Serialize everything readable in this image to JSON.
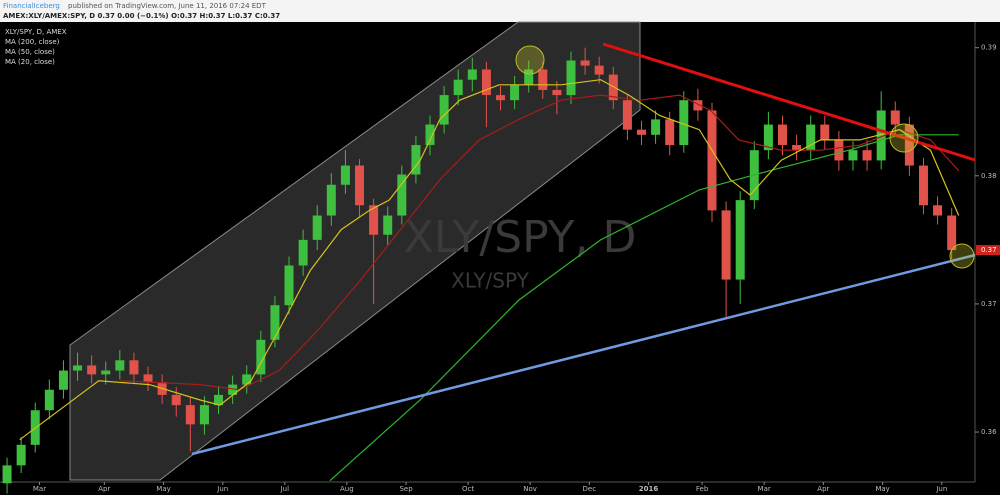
{
  "header": {
    "publisher": "FinancialIceberg",
    "published": "published on TradingView.com, June 11, 2016 07:24 EDT",
    "quote": "AMEX:XLY/AMEX:SPY, D 0.37 0.00 (−0.1%) O:0.37 H:0.37 L:0.37 C:0.37"
  },
  "chart_data": {
    "type": "candlestick",
    "legend": [
      "XLY/SPY, D, AMEX"
    ],
    "watermark": "XLY/SPY, D",
    "watermark_sub": "XLY/SPY",
    "last_price_label": "0.37",
    "up_color": "#3fbf3f",
    "down_color": "#e0524a",
    "x": [
      2.5,
      7.5,
      12.5,
      17.5,
      22.5,
      27.5,
      32.5,
      37.5,
      42.5,
      47.5,
      52.5,
      57.5,
      62.5,
      67.5,
      72.5,
      77.5,
      82.5,
      87.5,
      92.5,
      97.5,
      102.5,
      107.5,
      112.5,
      117.5,
      122.5,
      127.5,
      132.5,
      137.5,
      142.5,
      147.5,
      152.5,
      157.5,
      162.5,
      167.5,
      172.5,
      177.5,
      182.5,
      187.5,
      192.5,
      197.5,
      202.5,
      207.5,
      212.5,
      217.5,
      222.5,
      227.5,
      232.5,
      237.5,
      242.5,
      247.5,
      252.5,
      257.5,
      262.5,
      267.5,
      272.5,
      277.5,
      282.5,
      287.5,
      292.5,
      297.5,
      302.5,
      307.5,
      312.5,
      317.5,
      322.5,
      327.5,
      332.5,
      337.5
    ],
    "open": [
      0.356,
      0.3574,
      0.359,
      0.3617,
      0.3633,
      0.3648,
      0.3652,
      0.3645,
      0.3648,
      0.3656,
      0.3645,
      0.3639,
      0.3629,
      0.3621,
      0.3606,
      0.3621,
      0.3629,
      0.3637,
      0.3645,
      0.3672,
      0.3699,
      0.373,
      0.375,
      0.3769,
      0.3793,
      0.3808,
      0.3777,
      0.3754,
      0.3769,
      0.3801,
      0.3824,
      0.384,
      0.3863,
      0.3875,
      0.3883,
      0.3863,
      0.3859,
      0.3871,
      0.3883,
      0.3867,
      0.3863,
      0.389,
      0.3886,
      0.3879,
      0.3859,
      0.3836,
      0.3832,
      0.3844,
      0.3824,
      0.3859,
      0.3851,
      0.3773,
      0.3719,
      0.3781,
      0.382,
      0.384,
      0.3824,
      0.382,
      0.384,
      0.3828,
      0.3812,
      0.382,
      0.3812,
      0.3851,
      0.384,
      0.3808,
      0.3777,
      0.3769
    ],
    "high": [
      0.358,
      0.3596,
      0.3623,
      0.3641,
      0.3656,
      0.3662,
      0.366,
      0.3655,
      0.3664,
      0.3662,
      0.3651,
      0.3645,
      0.3635,
      0.3627,
      0.3628,
      0.3636,
      0.3644,
      0.3652,
      0.3679,
      0.3706,
      0.3737,
      0.3758,
      0.3777,
      0.3802,
      0.382,
      0.3813,
      0.3782,
      0.3776,
      0.3808,
      0.3831,
      0.3847,
      0.387,
      0.3883,
      0.3892,
      0.3889,
      0.387,
      0.3878,
      0.389,
      0.3889,
      0.3874,
      0.3897,
      0.39,
      0.3893,
      0.3885,
      0.3864,
      0.3843,
      0.3851,
      0.385,
      0.3866,
      0.3868,
      0.3857,
      0.378,
      0.3788,
      0.3827,
      0.385,
      0.3847,
      0.3832,
      0.3847,
      0.3847,
      0.3835,
      0.3827,
      0.3828,
      0.3866,
      0.3858,
      0.3846,
      0.3814,
      0.3784,
      0.3775
    ],
    "low": [
      0.3552,
      0.3568,
      0.3584,
      0.361,
      0.3626,
      0.364,
      0.3638,
      0.3637,
      0.3641,
      0.3638,
      0.3632,
      0.3622,
      0.3612,
      0.3585,
      0.3598,
      0.3614,
      0.3622,
      0.363,
      0.3639,
      0.3666,
      0.3692,
      0.3722,
      0.3742,
      0.3761,
      0.3786,
      0.3768,
      0.37,
      0.3746,
      0.3762,
      0.3794,
      0.3816,
      0.3833,
      0.3855,
      0.3866,
      0.3838,
      0.3851,
      0.3852,
      0.3865,
      0.386,
      0.3848,
      0.3856,
      0.3879,
      0.3872,
      0.3852,
      0.3828,
      0.3824,
      0.3825,
      0.3816,
      0.3818,
      0.3843,
      0.3764,
      0.3688,
      0.37,
      0.3774,
      0.3813,
      0.3816,
      0.3812,
      0.3813,
      0.382,
      0.3804,
      0.3804,
      0.3804,
      0.3805,
      0.3832,
      0.38,
      0.377,
      0.3762,
      0.3735
    ],
    "close": [
      0.3574,
      0.359,
      0.3617,
      0.3633,
      0.3648,
      0.3652,
      0.3645,
      0.3648,
      0.3656,
      0.3645,
      0.3639,
      0.3629,
      0.3621,
      0.3606,
      0.3621,
      0.3629,
      0.3637,
      0.3645,
      0.3672,
      0.3699,
      0.373,
      0.375,
      0.3769,
      0.3793,
      0.3808,
      0.3777,
      0.3754,
      0.3769,
      0.3801,
      0.3824,
      0.384,
      0.3863,
      0.3875,
      0.3883,
      0.3863,
      0.3859,
      0.3871,
      0.3883,
      0.3867,
      0.3863,
      0.389,
      0.3886,
      0.3879,
      0.3859,
      0.3836,
      0.3832,
      0.3844,
      0.3824,
      0.3859,
      0.3851,
      0.3773,
      0.3719,
      0.3781,
      0.382,
      0.384,
      0.3824,
      0.382,
      0.384,
      0.3828,
      0.3812,
      0.382,
      0.3812,
      0.3851,
      0.384,
      0.3808,
      0.3777,
      0.3769,
      0.3742
    ],
    "series": [
      {
        "name": "MA (200, close)",
        "color": "#2db52d",
        "x": [
          117,
          149,
          184,
          213,
          248,
          273,
          301,
          319,
          340
        ],
        "values": [
          0.3562,
          0.3625,
          0.3703,
          0.375,
          0.3789,
          0.3804,
          0.382,
          0.3832,
          0.3832
        ]
      },
      {
        "name": "MA (50, close)",
        "color": "#a81c1c",
        "x": [
          43,
          71,
          85,
          99,
          113,
          128,
          142,
          156,
          170,
          184,
          199,
          213,
          227,
          241,
          252,
          262,
          277,
          291,
          305,
          319,
          330,
          340
        ],
        "values": [
          0.364,
          0.3637,
          0.3633,
          0.3648,
          0.368,
          0.3719,
          0.3758,
          0.3797,
          0.3828,
          0.3844,
          0.3859,
          0.3863,
          0.3859,
          0.3863,
          0.3851,
          0.3828,
          0.382,
          0.382,
          0.3824,
          0.3836,
          0.3828,
          0.3804
        ]
      },
      {
        "name": "MA (20, close)",
        "color": "#d4c21a",
        "x": [
          7,
          35,
          53,
          71,
          78,
          89,
          99,
          110,
          121,
          131,
          138,
          149,
          156,
          163,
          177,
          199,
          213,
          223,
          234,
          248,
          259,
          266,
          277,
          291,
          305,
          319,
          330,
          340
        ],
        "values": [
          0.3594,
          0.364,
          0.3637,
          0.3625,
          0.3621,
          0.364,
          0.368,
          0.3726,
          0.3758,
          0.3773,
          0.3781,
          0.3812,
          0.3844,
          0.3859,
          0.3871,
          0.3871,
          0.3875,
          0.3863,
          0.3847,
          0.3836,
          0.3797,
          0.3785,
          0.3812,
          0.3828,
          0.3828,
          0.3836,
          0.382,
          0.3769
        ]
      }
    ],
    "xlim": [
      0,
      344
    ],
    "ylim": [
      0.3561,
      0.3906
    ],
    "yticks": [
      0.39,
      0.38,
      0.37,
      0.36
    ],
    "xticks": [
      {
        "value": 14,
        "label": "Mar"
      },
      {
        "value": 37,
        "label": "Apr"
      },
      {
        "value": 58,
        "label": "May"
      },
      {
        "value": 79,
        "label": "Jun"
      },
      {
        "value": 101,
        "label": "Jul"
      },
      {
        "value": 123,
        "label": "Aug"
      },
      {
        "value": 144,
        "label": "Sep"
      },
      {
        "value": 166,
        "label": "Oct"
      },
      {
        "value": 188,
        "label": "Nov"
      },
      {
        "value": 209,
        "label": "Dec"
      },
      {
        "value": 230,
        "label": "2016"
      },
      {
        "value": 249,
        "label": "Feb"
      },
      {
        "value": 271,
        "label": "Mar"
      },
      {
        "value": 292,
        "label": "Apr"
      },
      {
        "value": 313,
        "label": "May"
      },
      {
        "value": 334,
        "label": "Jun"
      }
    ],
    "grid": false
  }
}
